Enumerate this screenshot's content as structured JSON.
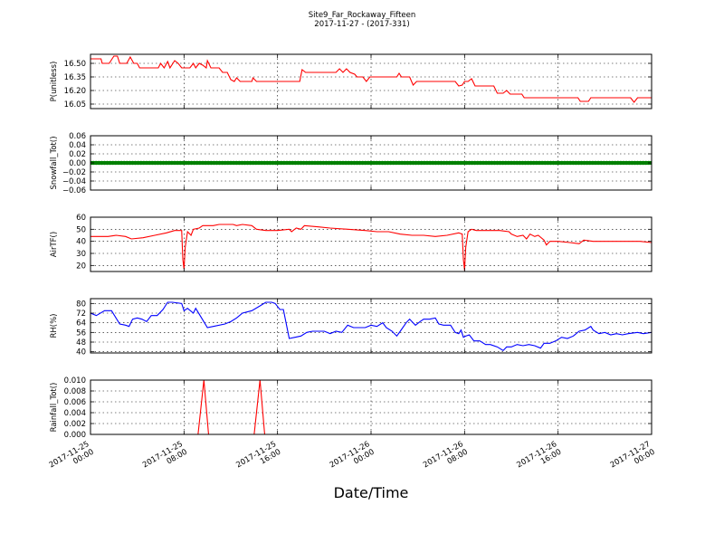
{
  "chart_data": {
    "title": "Site9_Far_Rockaway_Fifteen",
    "subtitle": "2017-11-27 - (2017-331)",
    "xlabel": "Date/Time",
    "x_ticks": [
      {
        "t": 0,
        "line1": "2017-11-25",
        "line2": "00:00"
      },
      {
        "t": 8,
        "line1": "2017-11-25",
        "line2": "08:00"
      },
      {
        "t": 16,
        "line1": "2017-11-25",
        "line2": "16:00"
      },
      {
        "t": 24,
        "line1": "2017-11-26",
        "line2": "00:00"
      },
      {
        "t": 32,
        "line1": "2017-11-26",
        "line2": "08:00"
      },
      {
        "t": 40,
        "line1": "2017-11-26",
        "line2": "16:00"
      },
      {
        "t": 48,
        "line1": "2017-11-27",
        "line2": "00:00"
      }
    ],
    "x_range_hours": [
      0,
      48
    ],
    "grid": true,
    "panels": [
      {
        "id": "pressure",
        "type": "line",
        "ylabel": "P(unitless)",
        "ylim": [
          16.0,
          16.6
        ],
        "yticks": [
          "16.05",
          "16.20",
          "16.35",
          "16.50"
        ],
        "ytick_values": [
          16.05,
          16.2,
          16.35,
          16.5
        ],
        "color": "#ff0000",
        "marker": false,
        "points": [
          [
            0,
            16.55
          ],
          [
            0.9,
            16.55
          ],
          [
            1.0,
            16.5
          ],
          [
            1.6,
            16.5
          ],
          [
            2.0,
            16.58
          ],
          [
            2.3,
            16.58
          ],
          [
            2.5,
            16.5
          ],
          [
            3.1,
            16.5
          ],
          [
            3.4,
            16.57
          ],
          [
            3.7,
            16.5
          ],
          [
            4.0,
            16.5
          ],
          [
            4.2,
            16.45
          ],
          [
            5.8,
            16.45
          ],
          [
            6.0,
            16.5
          ],
          [
            6.3,
            16.45
          ],
          [
            6.6,
            16.52
          ],
          [
            6.8,
            16.45
          ],
          [
            7.2,
            16.53
          ],
          [
            7.5,
            16.5
          ],
          [
            7.8,
            16.45
          ],
          [
            8.5,
            16.45
          ],
          [
            8.8,
            16.5
          ],
          [
            9.0,
            16.45
          ],
          [
            9.3,
            16.5
          ],
          [
            9.6,
            16.48
          ],
          [
            9.9,
            16.45
          ],
          [
            10.0,
            16.53
          ],
          [
            10.3,
            16.45
          ],
          [
            11.0,
            16.45
          ],
          [
            11.3,
            16.4
          ],
          [
            11.7,
            16.4
          ],
          [
            12.0,
            16.32
          ],
          [
            12.3,
            16.3
          ],
          [
            12.5,
            16.34
          ],
          [
            12.8,
            16.3
          ],
          [
            13.8,
            16.3
          ],
          [
            13.9,
            16.34
          ],
          [
            14.2,
            16.3
          ],
          [
            17.9,
            16.3
          ],
          [
            18.1,
            16.43
          ],
          [
            18.4,
            16.4
          ],
          [
            21.0,
            16.4
          ],
          [
            21.3,
            16.44
          ],
          [
            21.6,
            16.4
          ],
          [
            21.9,
            16.44
          ],
          [
            22.2,
            16.4
          ],
          [
            22.6,
            16.38
          ],
          [
            22.8,
            16.35
          ],
          [
            23.3,
            16.35
          ],
          [
            23.6,
            16.3
          ],
          [
            23.9,
            16.35
          ],
          [
            26.2,
            16.35
          ],
          [
            26.4,
            16.39
          ],
          [
            26.6,
            16.35
          ],
          [
            27.3,
            16.35
          ],
          [
            27.6,
            16.26
          ],
          [
            27.9,
            16.3
          ],
          [
            31.2,
            16.3
          ],
          [
            31.5,
            16.25
          ],
          [
            31.8,
            16.26
          ],
          [
            32.0,
            16.3
          ],
          [
            32.3,
            16.3
          ],
          [
            32.6,
            16.33
          ],
          [
            32.9,
            16.25
          ],
          [
            34.5,
            16.25
          ],
          [
            34.8,
            16.17
          ],
          [
            35.3,
            16.17
          ],
          [
            35.6,
            16.2
          ],
          [
            35.9,
            16.16
          ],
          [
            36.9,
            16.16
          ],
          [
            37.1,
            16.12
          ],
          [
            41.7,
            16.12
          ],
          [
            41.9,
            16.08
          ],
          [
            42.6,
            16.08
          ],
          [
            42.8,
            16.12
          ],
          [
            46.2,
            16.12
          ],
          [
            46.5,
            16.07
          ],
          [
            46.8,
            16.12
          ],
          [
            48,
            16.12
          ]
        ]
      },
      {
        "id": "snowfall",
        "type": "line",
        "ylabel": "Snowfall_Tot()",
        "ylim": [
          -0.06,
          0.06
        ],
        "yticks": [
          "−0.06",
          "−0.04",
          "−0.02",
          "0.00",
          "0.02",
          "0.04",
          "0.06"
        ],
        "ytick_values": [
          -0.06,
          -0.04,
          -0.02,
          0.0,
          0.02,
          0.04,
          0.06
        ],
        "color": "#008000",
        "marker": true,
        "points": [
          [
            0,
            0
          ],
          [
            48,
            0
          ]
        ]
      },
      {
        "id": "airtemp",
        "type": "line",
        "ylabel": "AirTF()",
        "ylim": [
          15,
          60
        ],
        "yticks": [
          "20",
          "30",
          "40",
          "50",
          "60"
        ],
        "ytick_values": [
          20,
          30,
          40,
          50,
          60
        ],
        "color": "#ff0000",
        "marker": false,
        "points": [
          [
            0,
            44
          ],
          [
            1.5,
            44
          ],
          [
            2.2,
            45
          ],
          [
            3.0,
            44
          ],
          [
            3.5,
            42
          ],
          [
            4.5,
            43
          ],
          [
            5.5,
            45
          ],
          [
            6.5,
            47
          ],
          [
            7.2,
            49
          ],
          [
            7.8,
            49
          ],
          [
            7.9,
            25
          ],
          [
            8.0,
            17
          ],
          [
            8.1,
            35
          ],
          [
            8.3,
            48
          ],
          [
            8.6,
            45
          ],
          [
            8.8,
            50
          ],
          [
            9.3,
            51
          ],
          [
            9.6,
            53
          ],
          [
            10.5,
            53
          ],
          [
            11.0,
            54
          ],
          [
            12.2,
            54
          ],
          [
            12.5,
            53
          ],
          [
            13.0,
            54
          ],
          [
            13.8,
            53
          ],
          [
            14.2,
            50
          ],
          [
            15.0,
            49
          ],
          [
            16.0,
            49
          ],
          [
            17.0,
            50
          ],
          [
            17.2,
            48
          ],
          [
            17.6,
            51
          ],
          [
            18.0,
            50
          ],
          [
            18.3,
            53
          ],
          [
            19.5,
            52
          ],
          [
            20.5,
            51
          ],
          [
            22.0,
            50
          ],
          [
            23.5,
            49
          ],
          [
            24.5,
            48
          ],
          [
            25.5,
            48
          ],
          [
            26.5,
            46
          ],
          [
            27.5,
            45
          ],
          [
            28.5,
            45
          ],
          [
            29.5,
            44
          ],
          [
            30.5,
            45
          ],
          [
            31.5,
            47
          ],
          [
            31.8,
            46
          ],
          [
            31.9,
            25
          ],
          [
            32.0,
            16
          ],
          [
            32.1,
            35
          ],
          [
            32.3,
            48
          ],
          [
            32.6,
            50
          ],
          [
            33.0,
            49
          ],
          [
            33.5,
            49
          ],
          [
            34.0,
            49
          ],
          [
            35.0,
            49
          ],
          [
            35.8,
            48
          ],
          [
            36.0,
            46
          ],
          [
            36.5,
            44
          ],
          [
            37.0,
            45
          ],
          [
            37.3,
            42
          ],
          [
            37.6,
            46
          ],
          [
            38.0,
            44
          ],
          [
            38.3,
            45
          ],
          [
            38.8,
            41
          ],
          [
            39.0,
            37
          ],
          [
            39.3,
            40
          ],
          [
            40.0,
            40
          ],
          [
            41.0,
            39
          ],
          [
            41.8,
            38
          ],
          [
            42.2,
            41
          ],
          [
            43.0,
            40
          ],
          [
            44.0,
            40
          ],
          [
            45.0,
            40
          ],
          [
            46.0,
            40
          ],
          [
            47.0,
            40
          ],
          [
            48,
            39
          ]
        ]
      },
      {
        "id": "rh",
        "type": "line",
        "ylabel": "RH(%)",
        "ylim": [
          39,
          84
        ],
        "yticks": [
          "40",
          "48",
          "56",
          "64",
          "72",
          "80"
        ],
        "ytick_values": [
          40,
          48,
          56,
          64,
          72,
          80
        ],
        "color": "#0000ff",
        "marker": false,
        "points": [
          [
            0,
            72
          ],
          [
            0.5,
            70
          ],
          [
            1.2,
            74
          ],
          [
            1.8,
            74
          ],
          [
            2.5,
            63
          ],
          [
            3.0,
            62
          ],
          [
            3.3,
            61
          ],
          [
            3.6,
            67
          ],
          [
            4.0,
            68
          ],
          [
            4.4,
            67
          ],
          [
            4.8,
            65
          ],
          [
            5.2,
            70
          ],
          [
            5.7,
            70
          ],
          [
            6.2,
            75
          ],
          [
            6.6,
            81
          ],
          [
            7.0,
            81
          ],
          [
            7.8,
            80
          ],
          [
            8.0,
            74
          ],
          [
            8.3,
            76
          ],
          [
            8.8,
            72
          ],
          [
            9.0,
            76
          ],
          [
            9.5,
            68
          ],
          [
            10.0,
            60
          ],
          [
            10.5,
            61
          ],
          [
            11.5,
            63
          ],
          [
            12.0,
            65
          ],
          [
            12.5,
            68
          ],
          [
            13.0,
            72
          ],
          [
            13.8,
            74
          ],
          [
            14.5,
            78
          ],
          [
            15.0,
            81
          ],
          [
            15.5,
            81
          ],
          [
            15.8,
            80
          ],
          [
            16.2,
            75
          ],
          [
            16.5,
            75
          ],
          [
            17.0,
            51
          ],
          [
            17.5,
            52
          ],
          [
            18.0,
            53
          ],
          [
            18.5,
            56
          ],
          [
            19.0,
            57
          ],
          [
            20.0,
            57
          ],
          [
            20.5,
            55
          ],
          [
            21.0,
            57
          ],
          [
            21.5,
            56
          ],
          [
            22.0,
            62
          ],
          [
            22.5,
            60
          ],
          [
            23.5,
            60
          ],
          [
            24.0,
            62
          ],
          [
            24.5,
            61
          ],
          [
            25.0,
            64
          ],
          [
            25.3,
            60
          ],
          [
            25.8,
            57
          ],
          [
            26.2,
            53
          ],
          [
            26.5,
            57
          ],
          [
            27.0,
            64
          ],
          [
            27.3,
            67
          ],
          [
            27.5,
            65
          ],
          [
            27.8,
            62
          ],
          [
            28.2,
            65
          ],
          [
            28.5,
            67
          ],
          [
            29.0,
            67
          ],
          [
            29.5,
            68
          ],
          [
            29.8,
            63
          ],
          [
            30.2,
            62
          ],
          [
            30.8,
            62
          ],
          [
            31.2,
            56
          ],
          [
            31.5,
            55
          ],
          [
            31.7,
            58
          ],
          [
            31.9,
            52
          ],
          [
            32.1,
            53
          ],
          [
            32.4,
            54
          ],
          [
            32.8,
            49
          ],
          [
            33.3,
            49
          ],
          [
            33.8,
            46
          ],
          [
            34.2,
            46
          ],
          [
            34.8,
            44
          ],
          [
            35.3,
            41
          ],
          [
            35.6,
            44
          ],
          [
            36.0,
            44
          ],
          [
            36.5,
            46
          ],
          [
            37.0,
            45
          ],
          [
            37.5,
            46
          ],
          [
            38.0,
            45
          ],
          [
            38.5,
            43
          ],
          [
            38.8,
            47
          ],
          [
            39.3,
            47
          ],
          [
            39.8,
            49
          ],
          [
            40.3,
            52
          ],
          [
            40.8,
            51
          ],
          [
            41.3,
            53
          ],
          [
            41.8,
            57
          ],
          [
            42.3,
            58
          ],
          [
            42.8,
            61
          ],
          [
            43.0,
            58
          ],
          [
            43.5,
            55
          ],
          [
            44.0,
            56
          ],
          [
            44.5,
            54
          ],
          [
            45.0,
            55
          ],
          [
            45.5,
            54
          ],
          [
            46.0,
            55
          ],
          [
            46.8,
            56
          ],
          [
            47.3,
            55
          ],
          [
            48,
            56
          ]
        ]
      },
      {
        "id": "rainfall",
        "type": "line",
        "ylabel": "Rainfall_Tot()",
        "ylim": [
          0.0,
          0.01
        ],
        "yticks": [
          "0.000",
          "0.002",
          "0.004",
          "0.006",
          "0.008",
          "0.010"
        ],
        "ytick_values": [
          0.0,
          0.002,
          0.004,
          0.006,
          0.008,
          0.01
        ],
        "color": "#ff0000",
        "marker": false,
        "points": [
          [
            0,
            0
          ],
          [
            9.2,
            0
          ],
          [
            9.7,
            0.01
          ],
          [
            10.1,
            0
          ],
          [
            14.0,
            0
          ],
          [
            14.5,
            0.01
          ],
          [
            14.9,
            0
          ],
          [
            48,
            0
          ]
        ]
      }
    ]
  }
}
